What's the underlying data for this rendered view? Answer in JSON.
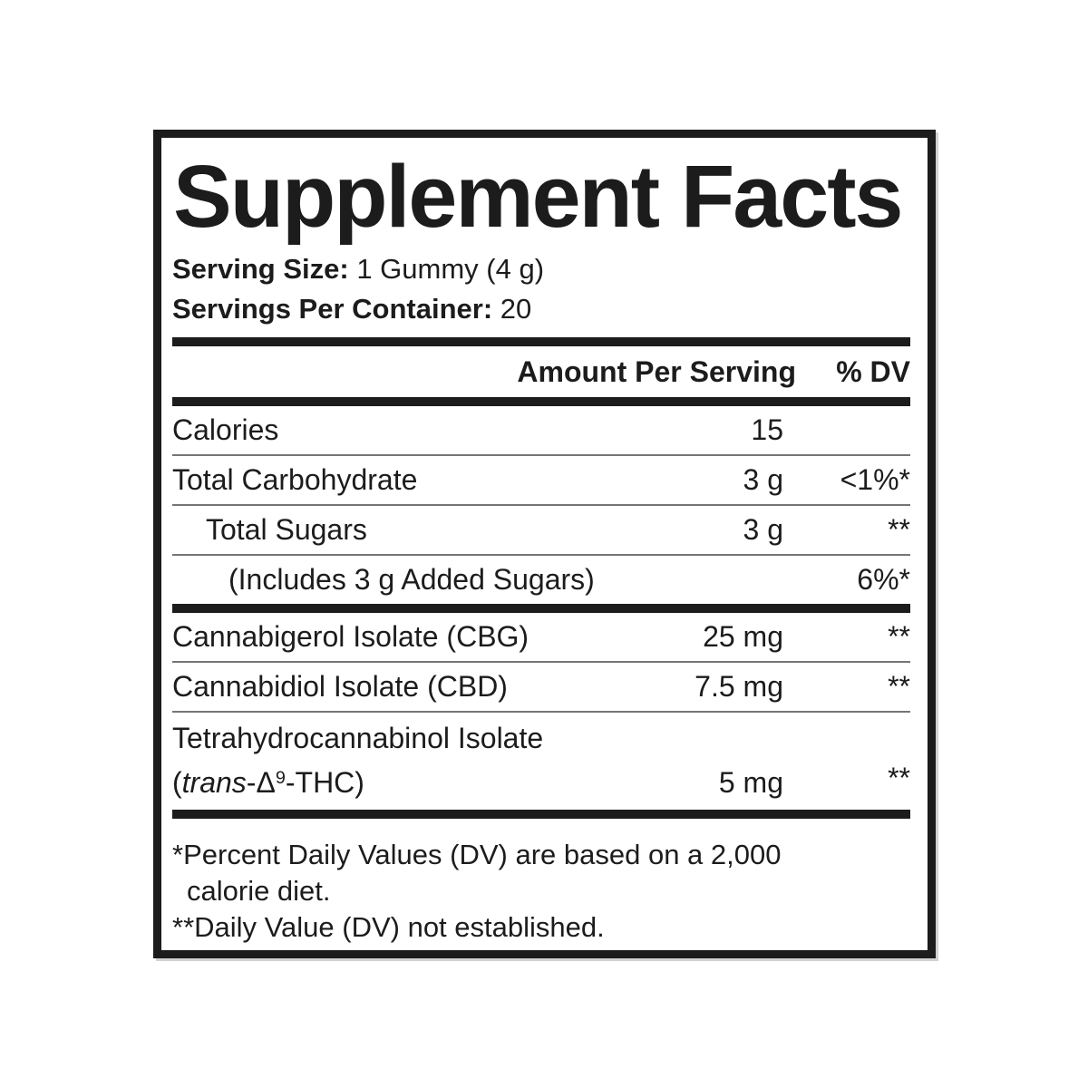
{
  "label": {
    "title": "Supplement Facts",
    "serving": {
      "size_label": "Serving Size:",
      "size_value": "1 Gummy (4 g)",
      "count_label": "Servings Per Container:",
      "count_value": "20"
    },
    "columns": {
      "amount": "Amount Per Serving",
      "dv": "% DV"
    },
    "rows": [
      {
        "name": "Calories",
        "amount": "15",
        "dv": "",
        "indent": 0
      },
      {
        "name": "Total Carbohydrate",
        "amount": "3 g",
        "dv": "<1%*",
        "indent": 0
      },
      {
        "name": "Total Sugars",
        "amount": "3 g",
        "dv": "**",
        "indent": 1
      },
      {
        "name": "(Includes 3 g Added Sugars)",
        "amount": "",
        "dv": "6%*",
        "indent": 2
      },
      {
        "name": "Cannabigerol Isolate (CBG)",
        "amount": "25 mg",
        "dv": "**",
        "indent": 0
      },
      {
        "name": "Cannabidiol Isolate (CBD)",
        "amount": "7.5 mg",
        "dv": "**",
        "indent": 0
      },
      {
        "name": "Tetrahydrocannabinol Isolate",
        "name_line2": {
          "open": "(",
          "italic": "trans",
          "delta": "-Δ",
          "sup": "9",
          "rest": "-THC)"
        },
        "amount": "5 mg",
        "dv": "**",
        "indent": 0
      }
    ],
    "footnotes": [
      {
        "marker": "*",
        "line1": "Percent Daily Values (DV) are based on a 2,000",
        "line2": "calorie diet."
      },
      {
        "marker": "**",
        "line1": "Daily Value (DV) not established.",
        "line2": ""
      }
    ],
    "colors": {
      "ink": "#1c1c1c",
      "thin_rule": "#757575",
      "background": "#ffffff"
    }
  }
}
